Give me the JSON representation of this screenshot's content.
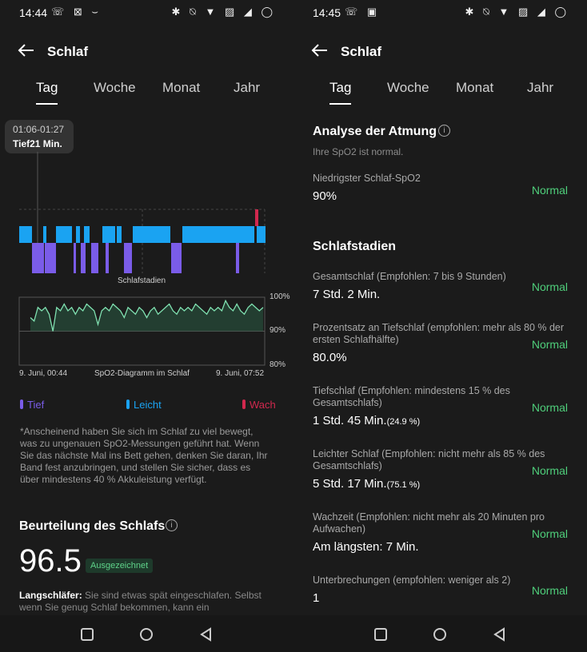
{
  "left": {
    "status": {
      "time": "14:44",
      "icons": "☏ ⊠ ⌣",
      "right_icons": "✱ ⍉ ▼ ▨ ◢ ◯"
    },
    "title": "Schlaf",
    "tabs": [
      "Tag",
      "Woche",
      "Monat",
      "Jahr"
    ],
    "tooltip": {
      "time_range": "01:06-01:27",
      "value": "Tief21 Min."
    },
    "stages_label": "Schlafstadien",
    "spo2": {
      "y_ticks": [
        "100%",
        "90%",
        "80%"
      ],
      "x_start": "9. Juni, 00:44",
      "x_end": "9. Juni, 07:52",
      "caption": "SpO2-Diagramm im Schlaf"
    },
    "legend": {
      "deep": "Tief",
      "light": "Leicht",
      "awake": "Wach"
    },
    "note": "*Anscheinend haben Sie sich im Schlaf zu viel bewegt, was zu ungenauen SpO2-Messungen geführt hat. Wenn Sie das nächste Mal ins Bett gehen, denken Sie daran, Ihr Band fest anzubringen, und stellen Sie sicher, dass es über mindestens 40 % Akkuleistung verfügt.",
    "rating_title": "Beurteilung des Schlafs",
    "score": "96.5",
    "badge": "Ausgezeichnet",
    "desc_bold": "Langschläfer:",
    "desc_text": " Sie sind etwas spät eingeschlafen. Selbst wenn Sie genug Schlaf bekommen, kann ein"
  },
  "right": {
    "status": {
      "time": "14:45",
      "icons": "☏ ▣",
      "right_icons": "✱ ⍉ ▼ ▨ ◢ ◯"
    },
    "title": "Schlaf",
    "tabs": [
      "Tag",
      "Woche",
      "Monat",
      "Jahr"
    ],
    "breath_title": "Analyse der Atmung",
    "breath_sub": "Ihre SpO2 ist normal.",
    "lowest_label": "Niedrigster Schlaf-SpO2",
    "lowest_value": "90%",
    "lowest_status": "Normal",
    "stages_title": "Schlafstadien",
    "items": [
      {
        "label": "Gesamtschlaf (Empfohlen: 7 bis 9 Stunden)",
        "value": "7 Std. 2 Min.",
        "sub": "",
        "status": "Normal"
      },
      {
        "label": "Prozentsatz an Tiefschlaf (empfohlen: mehr als 80 % der ersten Schlafhälfte)",
        "value": "80.0%",
        "sub": "",
        "status": "Normal"
      },
      {
        "label": "Tiefschlaf (Empfohlen: mindestens 15 % des Gesamtschlafs)",
        "value": "1 Std. 45 Min.",
        "sub": "(24.9 %)",
        "status": "Normal"
      },
      {
        "label": "Leichter Schlaf (Empfohlen: nicht mehr als 85 % des Gesamtschlafs)",
        "value": "5 Std. 17 Min.",
        "sub": "(75.1 %)",
        "status": "Normal"
      },
      {
        "label": "Wachzeit (Empfohlen: nicht mehr als 20 Minuten pro Aufwachen)",
        "value": "Am längsten: 7 Min.",
        "sub": "",
        "status": "Normal"
      },
      {
        "label": "Unterbrechungen (empfohlen: weniger als 2)",
        "value": "1",
        "sub": "",
        "status": "Normal"
      }
    ]
  },
  "colors": {
    "light": "#1aa3f2",
    "deep": "#7a5ce8",
    "awake": "#d1284e",
    "normal": "#4fcf7b",
    "spo2_line": "#7fe0b0"
  },
  "chart_data": {
    "type": "line",
    "title": "SpO2-Diagramm im Schlaf",
    "ylim": [
      80,
      100
    ],
    "y_ticks": [
      100,
      90,
      80
    ],
    "x_range": [
      "00:44",
      "07:52"
    ],
    "series": [
      {
        "values": [
          94,
          93,
          97,
          96,
          97,
          95,
          90,
          97,
          96,
          98,
          96,
          97,
          95,
          97,
          96,
          98,
          97,
          96,
          92,
          96,
          97,
          96,
          98,
          97,
          96,
          94,
          97,
          96,
          95,
          97,
          96,
          94,
          96,
          97,
          95,
          96,
          97,
          98,
          96,
          95,
          97,
          96,
          97,
          96,
          98,
          97,
          96,
          95,
          97,
          96,
          97,
          96,
          99,
          97,
          96,
          98,
          96,
          95,
          97,
          98,
          97,
          96,
          97
        ]
      }
    ]
  }
}
